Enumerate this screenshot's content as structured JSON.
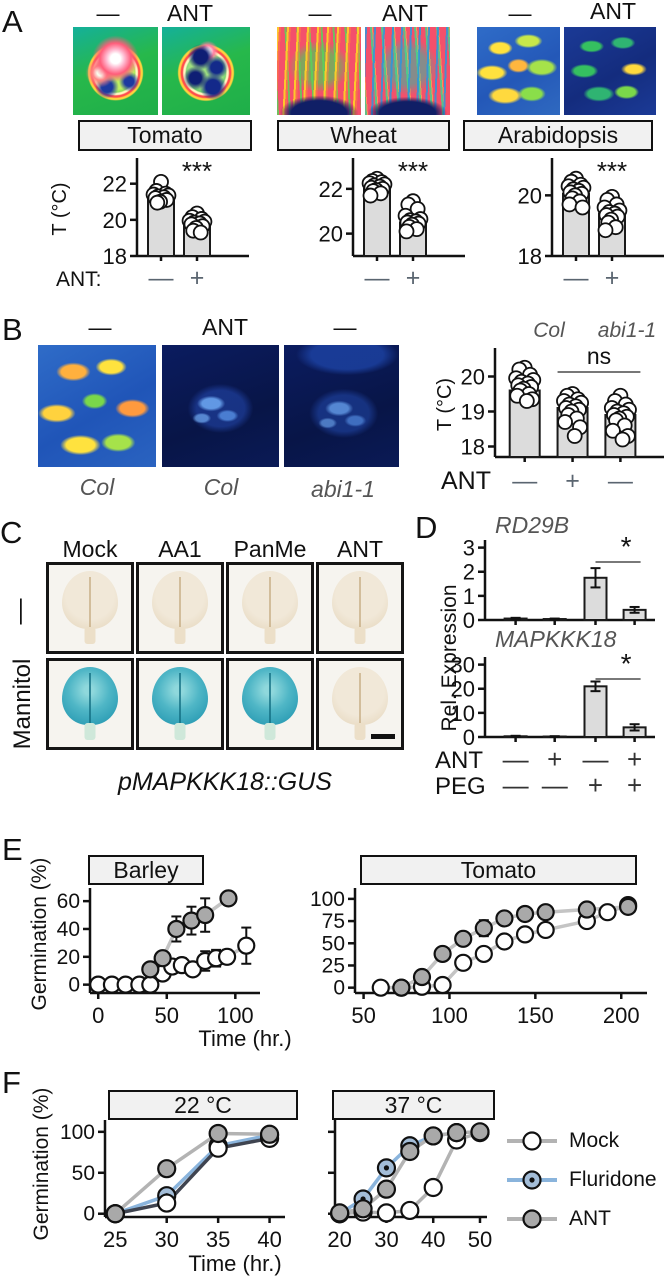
{
  "panelA": {
    "label": "A",
    "ylabel": "T (°C)",
    "xprefix": "ANT:",
    "groups": [
      {
        "minus": "—",
        "ant": "ANT",
        "title": "Tomato"
      },
      {
        "minus": "—",
        "ant": "ANT",
        "title": "Wheat"
      },
      {
        "minus": "—",
        "ant": "ANT",
        "title": "Arabidopsis"
      }
    ]
  },
  "panelB": {
    "label": "B",
    "headers": [
      "—",
      "ANT",
      "—"
    ],
    "image_labels": [
      "Col",
      "Col",
      "abi1-1"
    ],
    "ylabel": "T (°C)",
    "xprefix": "ANT"
  },
  "panelC": {
    "label": "C",
    "columns": [
      "Mock",
      "AA1",
      "PanMe",
      "ANT"
    ],
    "row_labels": [
      "—",
      "Mannitol"
    ],
    "stain": [
      [
        "pale",
        "pale",
        "pale",
        "pale"
      ],
      [
        "blue",
        "blue",
        "blue",
        "pale"
      ]
    ],
    "caption": "pMAPKKK18::GUS"
  },
  "panelD": {
    "label": "D",
    "ylabel": "Rel. Expression",
    "charts": [
      "RD29B",
      "MAPKKK18"
    ],
    "row_ant_label": "ANT",
    "row_peg_label": "PEG",
    "row_ant": [
      "—",
      "+",
      "—",
      "+"
    ],
    "row_peg": [
      "—",
      "—",
      "+",
      "+"
    ]
  },
  "panelE": {
    "label": "E",
    "ylabel": "Germination (%)",
    "xlabel": "Time (hr.)",
    "titles": [
      "Barley",
      "Tomato"
    ]
  },
  "panelF": {
    "label": "F",
    "ylabel": "Germination (%)",
    "xlabel": "Time (hr.)",
    "titles": [
      "22 °C",
      "37 °C"
    ],
    "legend": [
      {
        "label": "Mock",
        "line": "#b3b3b3",
        "fill": "#ffffff",
        "dot": false
      },
      {
        "label": "Fluridone",
        "line": "#8ab4dc",
        "fill": "#a3bdd8",
        "dot": true
      },
      {
        "label": "ANT",
        "line": "#b3b3b3",
        "fill": "#a9a9a9",
        "dot": false
      }
    ]
  },
  "chart_data": [
    {
      "id": "A-tomato",
      "type": "bar-scatter",
      "title": "Tomato",
      "ylabel": "T (°C)",
      "categories": [
        "—",
        "+"
      ],
      "values": [
        21.3,
        19.8
      ],
      "ylim": [
        18,
        23.2
      ],
      "yticks": [
        18,
        20,
        22
      ],
      "points": [
        [
          22.1,
          21.6,
          21.45,
          21.4,
          21.35,
          21.3,
          21.25,
          21.2,
          21.1,
          21.0,
          20.95
        ],
        [
          20.35,
          20.15,
          20.05,
          19.95,
          19.9,
          19.85,
          19.8,
          19.75,
          19.65,
          19.55,
          19.4,
          19.3
        ]
      ],
      "sig": {
        "style": "stars",
        "label": "***",
        "bar": 1
      }
    },
    {
      "id": "A-wheat",
      "type": "bar-scatter",
      "title": "Wheat",
      "ylabel": "T (°C)",
      "categories": [
        "—",
        "+"
      ],
      "values": [
        22.0,
        20.5
      ],
      "ylim": [
        19,
        23.2
      ],
      "yticks": [
        20,
        22
      ],
      "points": [
        [
          22.45,
          22.35,
          22.3,
          22.25,
          22.2,
          22.15,
          22.1,
          22.05,
          22.0,
          21.95,
          21.9,
          21.8,
          21.7
        ],
        [
          21.45,
          21.3,
          21.1,
          20.8,
          20.65,
          20.6,
          20.55,
          20.5,
          20.45,
          20.4,
          20.3,
          20.2,
          20.1
        ]
      ],
      "sig": {
        "style": "stars",
        "label": "***",
        "bar": 1
      }
    },
    {
      "id": "A-arabidopsis",
      "type": "bar-scatter",
      "title": "Arabidopsis",
      "ylabel": "T (°C)",
      "categories": [
        "—",
        "+"
      ],
      "values": [
        20.05,
        19.4
      ],
      "ylim": [
        18,
        21.1
      ],
      "yticks": [
        18,
        20
      ],
      "points": [
        [
          20.55,
          20.45,
          20.35,
          20.3,
          20.25,
          20.2,
          20.15,
          20.1,
          20.05,
          20.0,
          19.9,
          19.8,
          19.7,
          19.6
        ],
        [
          19.95,
          19.85,
          19.7,
          19.6,
          19.5,
          19.45,
          19.4,
          19.35,
          19.3,
          19.2,
          19.1,
          18.95,
          18.85
        ]
      ],
      "sig": {
        "style": "stars",
        "label": "***",
        "bar": 1
      }
    },
    {
      "id": "B-temp",
      "type": "bar-scatter",
      "ylabel": "T (°C)",
      "categories": [
        "—",
        "+",
        "—"
      ],
      "values": [
        19.6,
        19.1,
        18.9
      ],
      "ylim": [
        17.7,
        20.7
      ],
      "yticks": [
        18,
        19,
        20
      ],
      "group_labels": [
        "Col",
        "abi1-1"
      ],
      "points": [
        [
          20.25,
          20.2,
          20.05,
          19.95,
          19.9,
          19.85,
          19.8,
          19.75,
          19.7,
          19.65,
          19.6,
          19.5,
          19.45,
          19.35,
          19.3
        ],
        [
          19.5,
          19.45,
          19.35,
          19.3,
          19.25,
          19.2,
          19.15,
          19.1,
          19.05,
          19.0,
          18.9,
          18.8,
          18.7,
          18.55,
          18.3
        ],
        [
          19.45,
          19.3,
          19.2,
          19.1,
          19.05,
          19.0,
          18.95,
          18.9,
          18.85,
          18.8,
          18.75,
          18.6,
          18.45,
          18.3,
          18.2
        ]
      ],
      "sig": {
        "style": "bracket",
        "label": "ns",
        "bars": [
          1,
          2
        ]
      }
    },
    {
      "id": "D-RD29B",
      "type": "bar-error",
      "title": "RD29B",
      "values": [
        0.06,
        0.04,
        1.75,
        0.42
      ],
      "errors": [
        0.03,
        0.02,
        0.4,
        0.12
      ],
      "ylim": [
        0,
        3.15
      ],
      "yticks": [
        0,
        1,
        2,
        3
      ],
      "sig": {
        "label": "*",
        "bars": [
          2,
          3
        ]
      }
    },
    {
      "id": "D-MAPKKK18",
      "type": "bar-error",
      "title": "MAPKKK18",
      "values": [
        0.3,
        0.2,
        21,
        4
      ],
      "errors": [
        0.2,
        0.15,
        2,
        1.3
      ],
      "ylim": [
        0,
        31.5
      ],
      "yticks": [
        0,
        10,
        20,
        30
      ],
      "sig": {
        "label": "*",
        "bars": [
          2,
          3
        ]
      }
    },
    {
      "id": "E-barley",
      "type": "line",
      "title": "Barley",
      "xlim": [
        -6,
        118
      ],
      "ylim": [
        -6,
        68
      ],
      "xticks": [
        0,
        50,
        100
      ],
      "yticks": [
        0,
        20,
        40,
        60
      ],
      "series": [
        {
          "name": "Mock",
          "line": "#c4c4c4",
          "fill": "#ffffff",
          "x": [
            0,
            10,
            20,
            30,
            38,
            47,
            54,
            61,
            69,
            78,
            86,
            94,
            108
          ],
          "y": [
            0,
            0,
            0,
            0,
            0,
            8,
            13,
            14,
            11,
            17,
            19,
            20,
            28
          ],
          "err": [
            0,
            0,
            0,
            0,
            0,
            4,
            4,
            5,
            4,
            7,
            6,
            5,
            13
          ]
        },
        {
          "name": "ANT",
          "line": "#c4c4c4",
          "fill": "#a9a9a9",
          "x": [
            38,
            47,
            57,
            68,
            78,
            95
          ],
          "y": [
            11,
            19,
            40,
            46,
            50,
            62
          ],
          "err": [
            4,
            4,
            9,
            10,
            12,
            4
          ]
        }
      ]
    },
    {
      "id": "E-tomato",
      "type": "line",
      "title": "Tomato",
      "xlim": [
        45,
        215
      ],
      "ylim": [
        -6,
        110
      ],
      "xticks": [
        50,
        100,
        150,
        200
      ],
      "yticks": [
        0,
        25,
        50,
        75,
        100
      ],
      "series": [
        {
          "name": "Mock",
          "line": "#c4c4c4",
          "fill": "#ffffff",
          "x": [
            60,
            72,
            84,
            96,
            108,
            120,
            132,
            144,
            156,
            180,
            192,
            204
          ],
          "y": [
            0,
            0,
            1,
            3,
            28,
            38,
            52,
            60,
            65,
            75,
            85,
            93
          ],
          "err": [
            0,
            0,
            0,
            0,
            3,
            3,
            3,
            3,
            3,
            3,
            3,
            3
          ]
        },
        {
          "name": "ANT",
          "line": "#c4c4c4",
          "fill": "#a9a9a9",
          "x": [
            72,
            84,
            96,
            108,
            120,
            132,
            144,
            156,
            180,
            204
          ],
          "y": [
            0,
            12,
            38,
            55,
            67,
            78,
            83,
            85,
            88,
            91
          ],
          "err": [
            0,
            6,
            4,
            4,
            9,
            6,
            4,
            3,
            3,
            3
          ]
        }
      ]
    },
    {
      "id": "F-22C",
      "type": "line",
      "title": "22 °C",
      "xlim": [
        24,
        41.5
      ],
      "ylim": [
        -4,
        112
      ],
      "xticks": [
        25,
        30,
        35,
        40
      ],
      "yticks": [
        0,
        50,
        100
      ],
      "series": [
        {
          "name": "Fluridone",
          "line": "#8ab4dc",
          "fill": "#a3bdd8",
          "dot": true,
          "x": [
            25,
            30,
            35,
            40
          ],
          "y": [
            0,
            22,
            83,
            96
          ]
        },
        {
          "name": "Mock",
          "line": "#3f4450",
          "fill": "#ffffff",
          "x": [
            25,
            30,
            35,
            40
          ],
          "y": [
            0,
            13,
            80,
            92
          ]
        },
        {
          "name": "ANT",
          "line": "#b3b3b3",
          "fill": "#a9a9a9",
          "x": [
            25,
            30,
            35,
            40
          ],
          "y": [
            0,
            55,
            98,
            97
          ]
        }
      ]
    },
    {
      "id": "F-37C",
      "type": "line",
      "title": "37 °C",
      "ytick_labels": false,
      "xlim": [
        19,
        51.5
      ],
      "ylim": [
        -4,
        112
      ],
      "xticks": [
        20,
        30,
        40,
        50
      ],
      "yticks": [
        0,
        50,
        100
      ],
      "series": [
        {
          "name": "Mock",
          "line": "#b3b3b3",
          "fill": "#ffffff",
          "x": [
            20,
            25,
            30,
            35,
            40,
            45,
            50
          ],
          "y": [
            0,
            2,
            1,
            4,
            32,
            90,
            99
          ]
        },
        {
          "name": "Fluridone",
          "line": "#8ab4dc",
          "fill": "#a3bdd8",
          "dot": true,
          "x": [
            20,
            25,
            30,
            35,
            40,
            45
          ],
          "y": [
            0,
            18,
            56,
            83,
            95,
            99
          ]
        },
        {
          "name": "ANT",
          "line": "#b3b3b3",
          "fill": "#a9a9a9",
          "x": [
            20,
            25,
            30,
            35,
            40,
            45,
            50
          ],
          "y": [
            1,
            6,
            30,
            76,
            95,
            99,
            100
          ]
        }
      ]
    }
  ]
}
